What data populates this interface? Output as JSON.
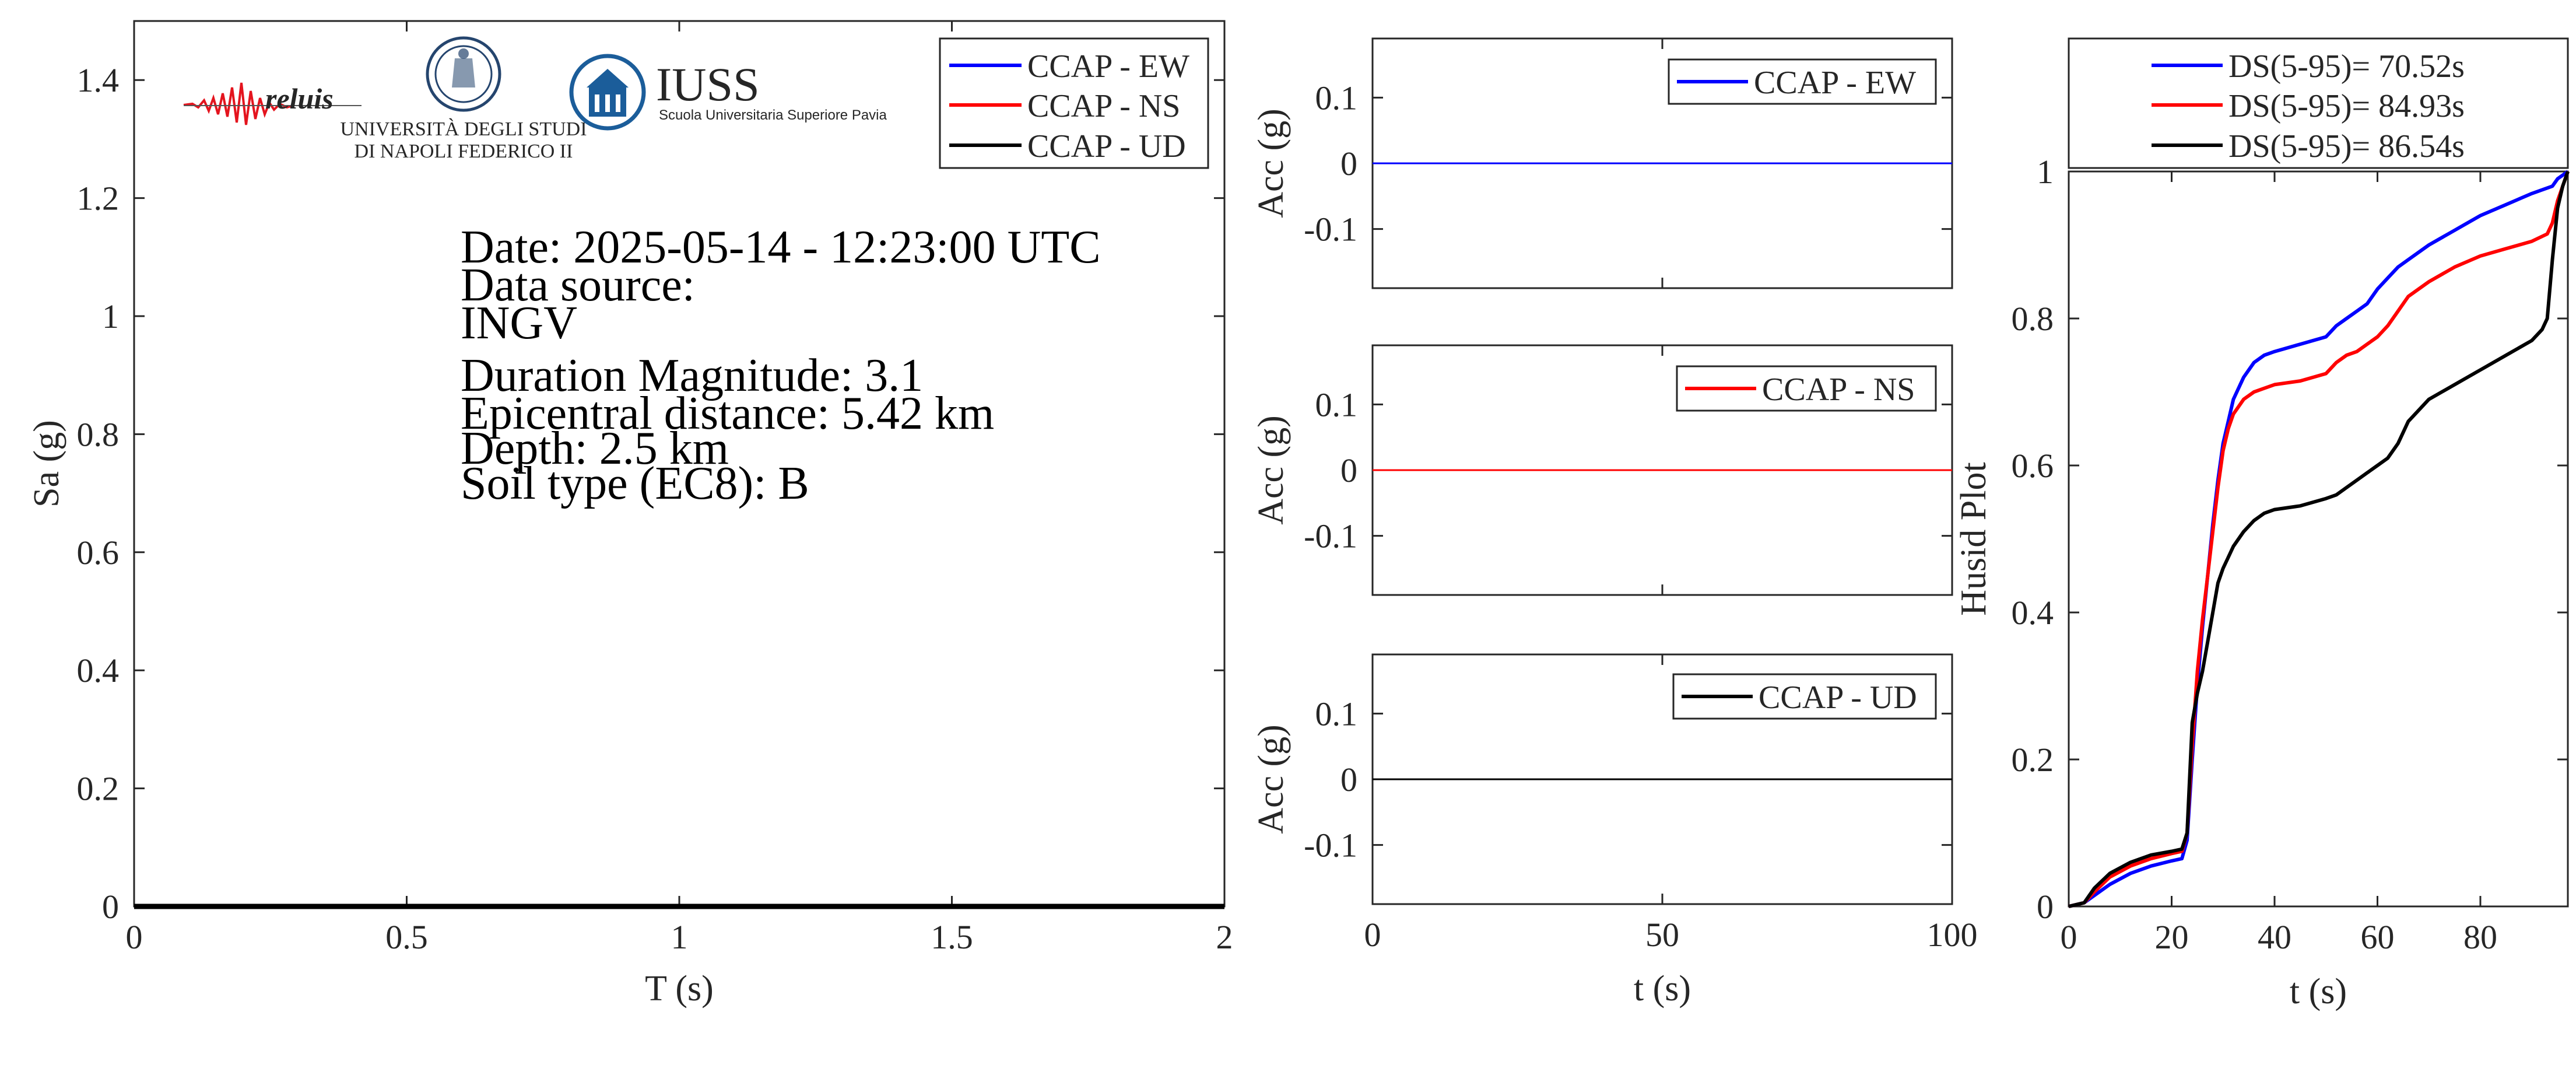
{
  "colors": {
    "ew": "#0000ff",
    "ns": "#ff0000",
    "ud": "#000000",
    "axis": "#262626"
  },
  "logos": {
    "reluis": "reluis",
    "unina_line1": "UNIVERSITÀ DEGLI STUDI",
    "unina_line2": "DI NAPOLI FEDERICO II",
    "iuss_title": "IUSS",
    "iuss_subtitle": "Scuola Universitaria Superiore Pavia"
  },
  "info": {
    "date": "Date: 2025-05-14 - 12:23:00 UTC",
    "source_label": "Data source:",
    "source": "INGV",
    "magnitude": "Duration Magnitude: 3.1",
    "distance": "Epicentral distance: 5.42 km",
    "depth": "Depth: 2.5 km",
    "soil": "Soil type (EC8): B"
  },
  "chart_data": [
    {
      "id": "spectrum",
      "type": "line",
      "xlabel": "T (s)",
      "ylabel": "Sa (g)",
      "xlim": [
        0,
        2
      ],
      "ylim": [
        0,
        1.5
      ],
      "xticks": [
        0,
        0.5,
        1,
        1.5,
        2
      ],
      "xtick_labels": [
        "0",
        "0.5",
        "1",
        "1.5",
        "2"
      ],
      "yticks": [
        0,
        0.2,
        0.4,
        0.6,
        0.8,
        1,
        1.2,
        1.4
      ],
      "ytick_labels": [
        "0",
        "0.2",
        "0.4",
        "0.6",
        "0.8",
        "1",
        "1.2",
        "1.4"
      ],
      "legend": "top-right",
      "series": [
        {
          "name": "CCAP - EW",
          "color": "#0000ff",
          "x": [
            0,
            2
          ],
          "y": [
            0,
            0
          ]
        },
        {
          "name": "CCAP - NS",
          "color": "#ff0000",
          "x": [
            0,
            2
          ],
          "y": [
            0,
            0
          ]
        },
        {
          "name": "CCAP - UD",
          "color": "#000000",
          "x": [
            0,
            2
          ],
          "y": [
            0,
            0
          ]
        }
      ]
    },
    {
      "id": "acc-ew",
      "type": "line",
      "xlabel": "",
      "ylabel": "Acc (g)",
      "xlim": [
        0,
        100
      ],
      "ylim": [
        -0.19,
        0.19
      ],
      "yticks": [
        0.1,
        0,
        -0.1
      ],
      "ytick_labels": [
        "0.1",
        "0",
        "-0.1"
      ],
      "legend": "top-right",
      "series": [
        {
          "name": "CCAP - EW",
          "color": "#0000ff",
          "x": [
            0,
            100
          ],
          "y": [
            0,
            0
          ]
        }
      ]
    },
    {
      "id": "acc-ns",
      "type": "line",
      "xlabel": "",
      "ylabel": "Acc (g)",
      "xlim": [
        0,
        100
      ],
      "ylim": [
        -0.19,
        0.19
      ],
      "yticks": [
        0.1,
        0,
        -0.1
      ],
      "ytick_labels": [
        "0.1",
        "0",
        "-0.1"
      ],
      "legend": "top-right",
      "series": [
        {
          "name": "CCAP - NS",
          "color": "#ff0000",
          "x": [
            0,
            100
          ],
          "y": [
            0,
            0
          ]
        }
      ]
    },
    {
      "id": "acc-ud",
      "type": "line",
      "xlabel": "t (s)",
      "ylabel": "Acc (g)",
      "xlim": [
        0,
        100
      ],
      "ylim": [
        -0.19,
        0.19
      ],
      "xticks": [
        0,
        50,
        100
      ],
      "xtick_labels": [
        "0",
        "50",
        "100"
      ],
      "yticks": [
        0.1,
        0,
        -0.1
      ],
      "ytick_labels": [
        "0.1",
        "0",
        "-0.1"
      ],
      "legend": "top-right",
      "series": [
        {
          "name": "CCAP - UD",
          "color": "#000000",
          "x": [
            0,
            100
          ],
          "y": [
            0,
            0
          ]
        }
      ]
    },
    {
      "id": "husid",
      "type": "line",
      "xlabel": "t (s)",
      "ylabel": "Husid Plot",
      "xlim": [
        0,
        97
      ],
      "ylim": [
        0,
        1
      ],
      "xticks": [
        0,
        20,
        40,
        60,
        80
      ],
      "xtick_labels": [
        "0",
        "20",
        "40",
        "60",
        "80"
      ],
      "yticks": [
        0,
        0.2,
        0.4,
        0.6,
        0.8,
        1
      ],
      "ytick_labels": [
        "0",
        "0.2",
        "0.4",
        "0.6",
        "0.8",
        "1"
      ],
      "legend": "top (outside)",
      "series": [
        {
          "name": "DS(5-95)= 70.52s",
          "color": "#0000ff",
          "x": [
            0,
            3,
            5,
            8,
            12,
            16,
            20,
            22,
            23,
            24,
            25,
            26,
            27,
            28,
            29,
            30,
            31,
            32,
            34,
            36,
            38,
            40,
            45,
            50,
            52,
            54,
            56,
            58,
            60,
            62,
            64,
            66,
            70,
            75,
            80,
            85,
            90,
            94,
            95,
            96,
            97
          ],
          "y": [
            0,
            0.005,
            0.015,
            0.03,
            0.045,
            0.055,
            0.062,
            0.065,
            0.09,
            0.2,
            0.3,
            0.38,
            0.45,
            0.52,
            0.58,
            0.63,
            0.66,
            0.69,
            0.72,
            0.74,
            0.75,
            0.755,
            0.765,
            0.775,
            0.79,
            0.8,
            0.81,
            0.82,
            0.84,
            0.855,
            0.87,
            0.88,
            0.9,
            0.92,
            0.94,
            0.955,
            0.97,
            0.98,
            0.99,
            0.995,
            1.0
          ]
        },
        {
          "name": "DS(5-95)= 84.93s",
          "color": "#ff0000",
          "x": [
            0,
            3,
            5,
            8,
            12,
            16,
            20,
            22,
            23,
            24,
            25,
            26,
            27,
            28,
            29,
            30,
            31,
            32,
            34,
            36,
            38,
            40,
            45,
            50,
            52,
            54,
            56,
            58,
            60,
            62,
            64,
            66,
            70,
            75,
            80,
            85,
            90,
            93,
            94,
            95,
            96,
            97
          ],
          "y": [
            0,
            0.005,
            0.02,
            0.04,
            0.055,
            0.065,
            0.072,
            0.075,
            0.1,
            0.22,
            0.32,
            0.39,
            0.45,
            0.51,
            0.57,
            0.62,
            0.65,
            0.67,
            0.69,
            0.7,
            0.705,
            0.71,
            0.715,
            0.725,
            0.74,
            0.75,
            0.755,
            0.765,
            0.775,
            0.79,
            0.81,
            0.83,
            0.85,
            0.87,
            0.885,
            0.895,
            0.905,
            0.915,
            0.93,
            0.96,
            0.98,
            1.0
          ]
        },
        {
          "name": "DS(5-95)= 86.54s",
          "color": "#000000",
          "x": [
            0,
            3,
            5,
            8,
            12,
            16,
            20,
            22,
            23,
            24,
            25,
            26,
            27,
            28,
            29,
            30,
            31,
            32,
            34,
            36,
            38,
            40,
            45,
            50,
            52,
            54,
            56,
            58,
            60,
            62,
            64,
            66,
            70,
            75,
            80,
            85,
            90,
            92,
            93,
            94,
            95,
            96,
            97
          ],
          "y": [
            0,
            0.005,
            0.025,
            0.045,
            0.06,
            0.07,
            0.075,
            0.078,
            0.1,
            0.25,
            0.29,
            0.32,
            0.36,
            0.4,
            0.44,
            0.46,
            0.475,
            0.49,
            0.51,
            0.525,
            0.535,
            0.54,
            0.545,
            0.555,
            0.56,
            0.57,
            0.58,
            0.59,
            0.6,
            0.61,
            0.63,
            0.66,
            0.69,
            0.71,
            0.73,
            0.75,
            0.77,
            0.785,
            0.8,
            0.88,
            0.95,
            0.98,
            1.0
          ]
        }
      ]
    }
  ]
}
